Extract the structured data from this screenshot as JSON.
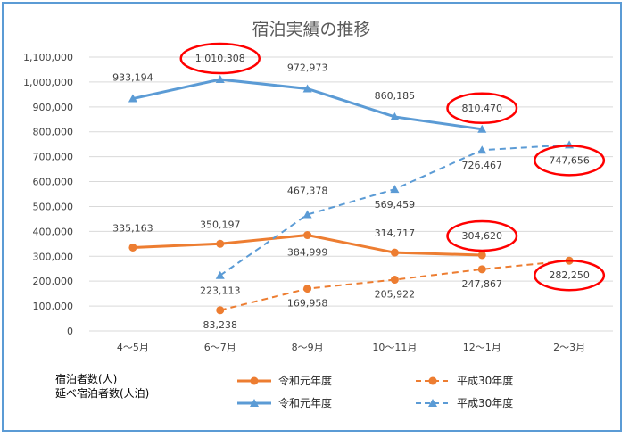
{
  "chart_data": {
    "type": "line",
    "title": "宿泊実績の推移",
    "categories": [
      "4～5月",
      "6～7月",
      "8～9月",
      "10～11月",
      "12～1月",
      "2～3月"
    ],
    "ylim": [
      0,
      1100000
    ],
    "yticks": [
      "0",
      "100,000",
      "200,000",
      "300,000",
      "400,000",
      "500,000",
      "600,000",
      "700,000",
      "800,000",
      "900,000",
      "1,000,000",
      "1,100,000"
    ],
    "grid": true,
    "legend_position": "bottom",
    "legend_row_labels": [
      "宿泊者数(人)",
      "延べ宿泊者数(人泊)"
    ],
    "series": [
      {
        "id": "a",
        "name": "令和元年度",
        "group": "宿泊者数(人)",
        "color": "#ed7d31",
        "style": "solid",
        "marker": "circle",
        "values": [
          335163,
          350197,
          384999,
          314717,
          304620,
          null
        ],
        "labels": [
          "335,163",
          "350,197",
          "384,999",
          "314,717",
          "304,620",
          null
        ]
      },
      {
        "id": "b",
        "name": "平成30年度",
        "group": "宿泊者数(人)",
        "color": "#ed7d31",
        "style": "dashed",
        "marker": "circle",
        "values": [
          null,
          83238,
          169958,
          205922,
          247867,
          282250
        ],
        "labels": [
          null,
          "83,238",
          "169,958",
          "205,922",
          "247,867",
          "282,250"
        ]
      },
      {
        "id": "c",
        "name": "令和元年度",
        "group": "延べ宿泊者数(人泊)",
        "color": "#5b9bd5",
        "style": "solid",
        "marker": "triangle",
        "values": [
          933194,
          1010308,
          972973,
          860185,
          810470,
          null
        ],
        "labels": [
          "933,194",
          "1,010,308",
          "972,973",
          "860,185",
          "810,470",
          null
        ]
      },
      {
        "id": "d",
        "name": "平成30年度",
        "group": "延べ宿泊者数(人泊)",
        "color": "#5b9bd5",
        "style": "dashed",
        "marker": "triangle",
        "values": [
          null,
          223113,
          467378,
          569459,
          726467,
          747656
        ],
        "labels": [
          null,
          "223,113",
          "467,378",
          "569,459",
          "726,467",
          "747,656"
        ]
      }
    ],
    "highlight_circle_color": "#ff0000",
    "highlighted_labels": [
      "1,010,308",
      "810,470",
      "747,656",
      "304,620",
      "282,250"
    ]
  }
}
